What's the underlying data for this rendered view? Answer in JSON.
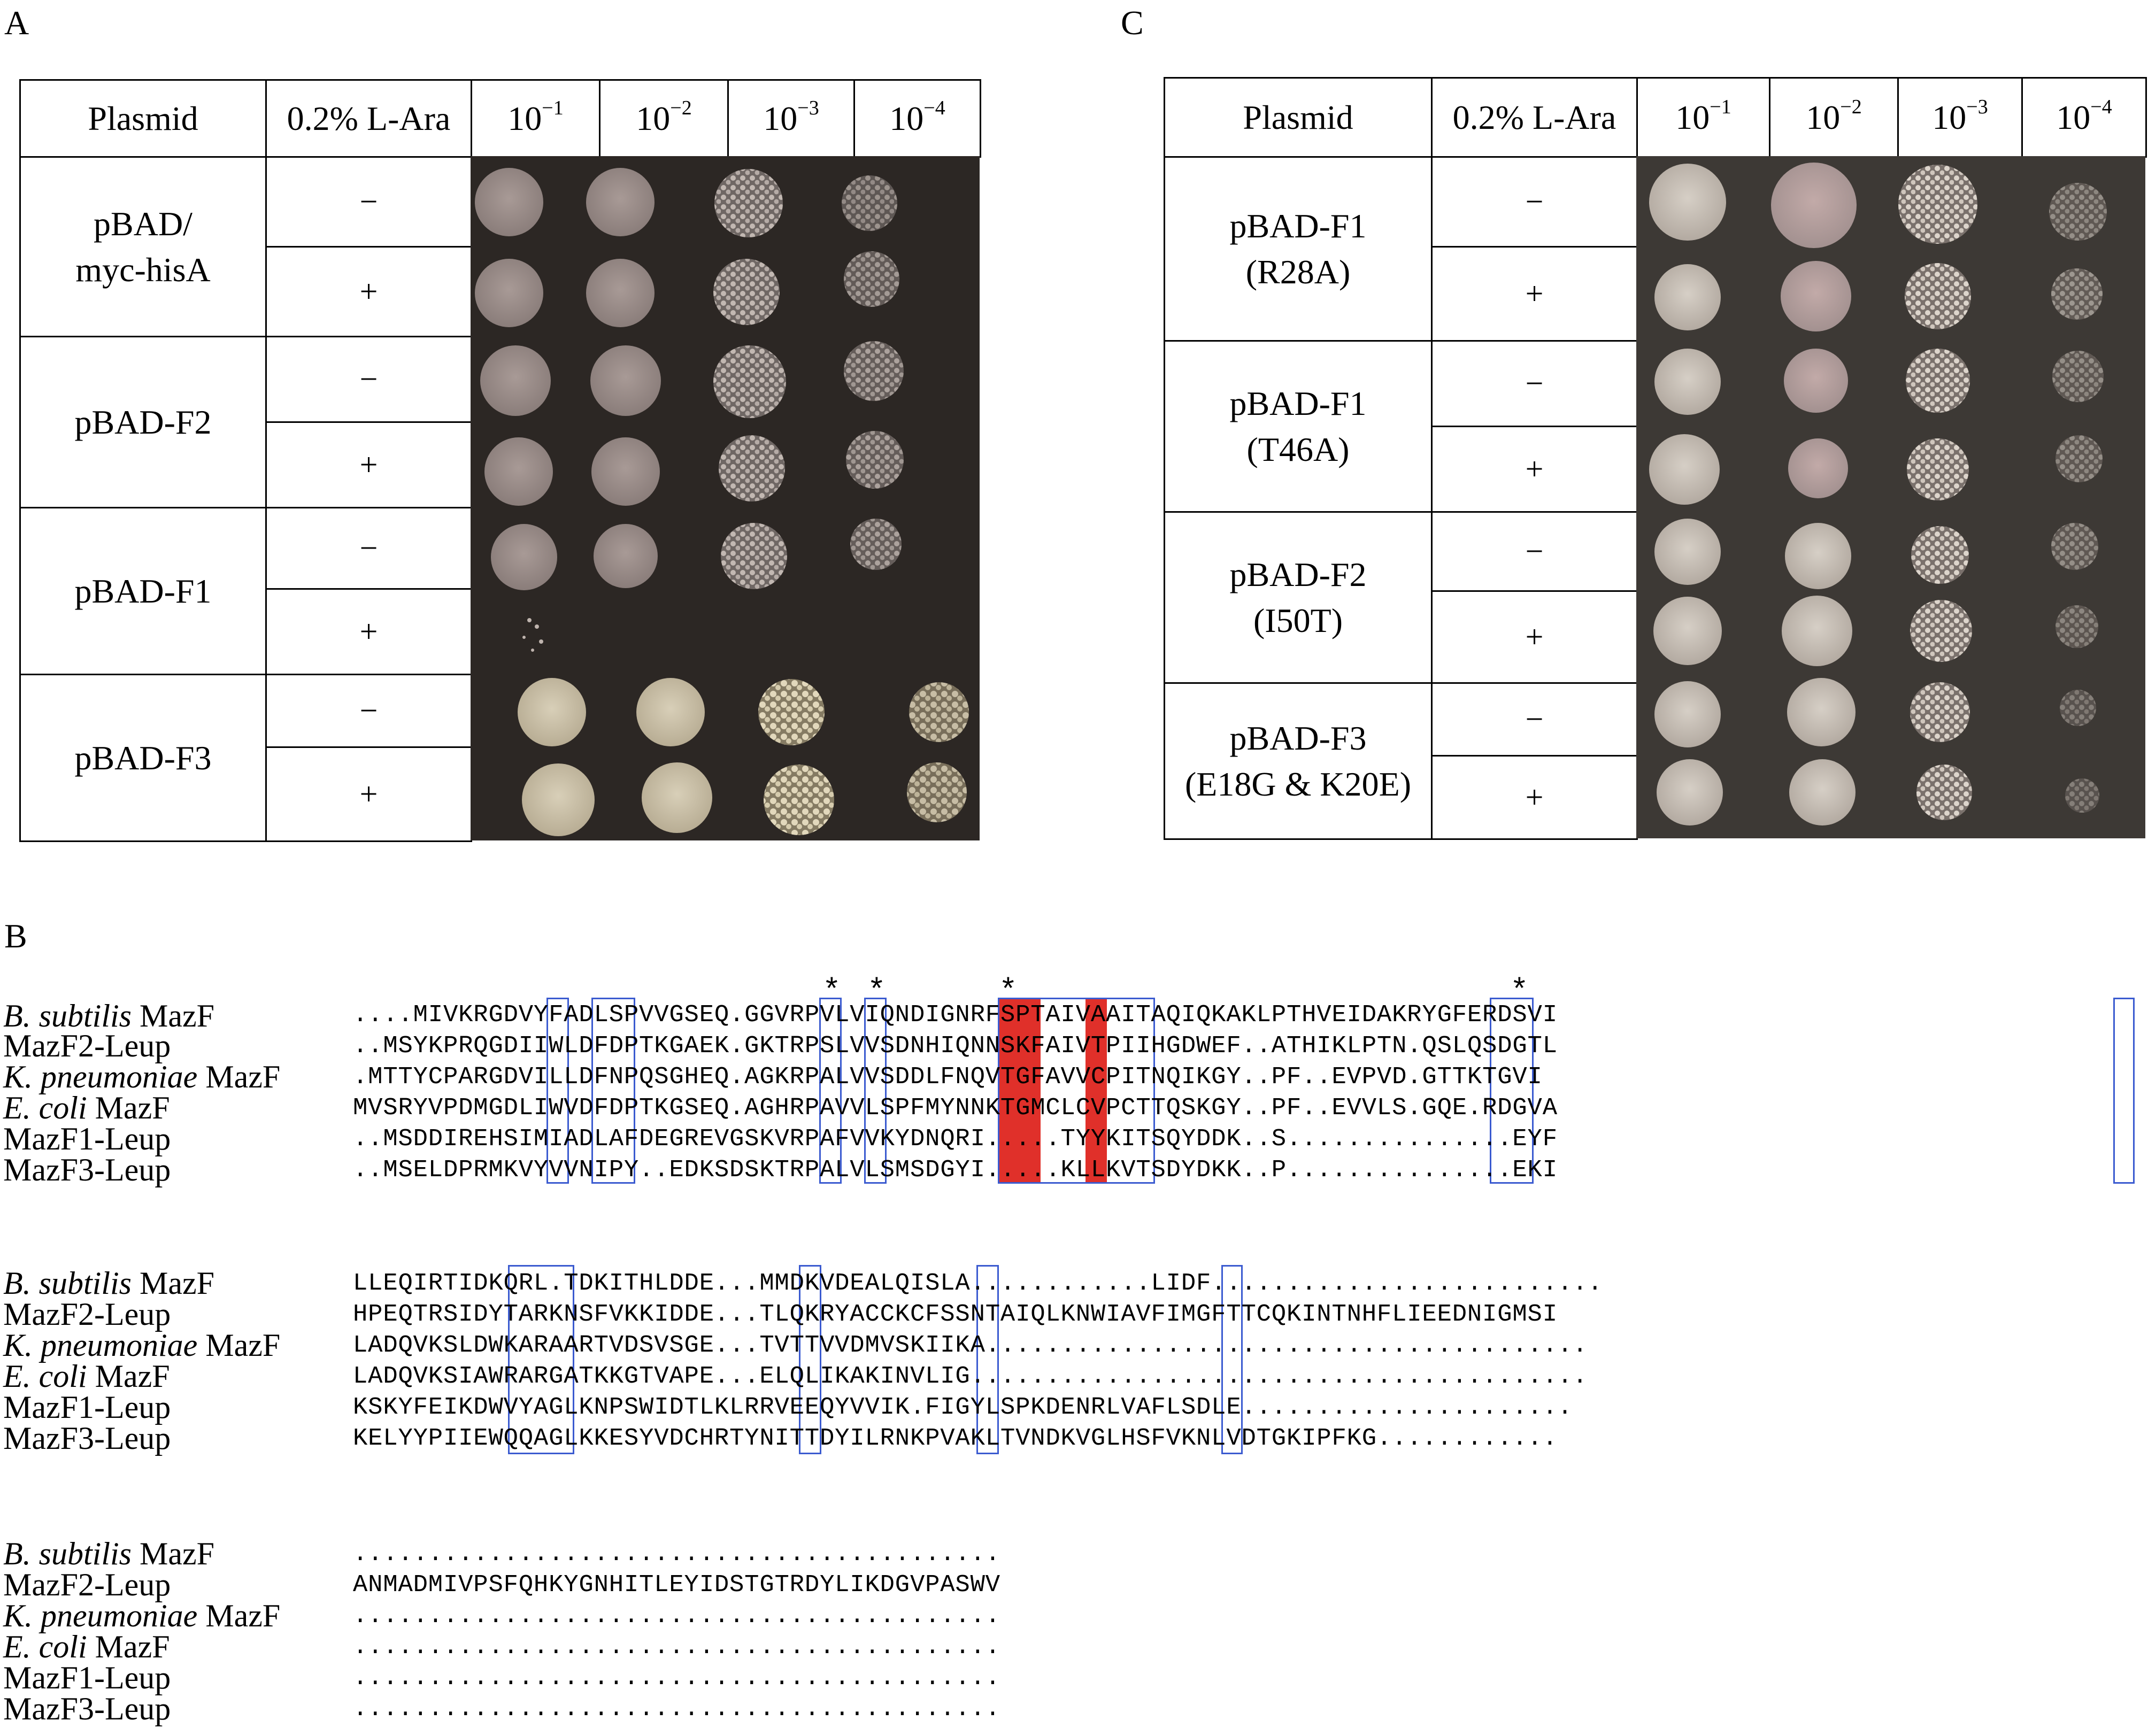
{
  "panel_a": {
    "letter": "A",
    "headers": [
      "Plasmid",
      "0.2% L-Ara",
      "10",
      "10",
      "10",
      "10"
    ],
    "exponents": [
      "−1",
      "−2",
      "−3",
      "−4"
    ],
    "rows": [
      {
        "plasmid_line1": "pBAD/",
        "plasmid_line2": "myc-hisA"
      },
      {
        "plasmid_line1": "pBAD-F2",
        "plasmid_line2": ""
      },
      {
        "plasmid_line1": "pBAD-F1",
        "plasmid_line2": ""
      },
      {
        "plasmid_line1": "pBAD-F3",
        "plasmid_line2": ""
      }
    ],
    "minus": "−",
    "plus": "+"
  },
  "panel_c": {
    "letter": "C",
    "headers": [
      "Plasmid",
      "0.2% L-Ara",
      "10",
      "10",
      "10",
      "10"
    ],
    "exponents": [
      "−1",
      "−2",
      "−3",
      "−4"
    ],
    "rows": [
      {
        "plasmid_line1": "pBAD-F1",
        "plasmid_line2": "(R28A)"
      },
      {
        "plasmid_line1": "pBAD-F1",
        "plasmid_line2": "(T46A)"
      },
      {
        "plasmid_line1": "pBAD-F2",
        "plasmid_line2": "(I50T)"
      },
      {
        "plasmid_line1": "pBAD-F3",
        "plasmid_line2": "(E18G & K20E)"
      }
    ],
    "minus": "−",
    "plus": "+"
  },
  "panel_b": {
    "letter": "B",
    "stars": [
      "*",
      "*",
      "*",
      "*"
    ],
    "organisms": [
      {
        "italic": "B. subtilis",
        "rest": " MazF"
      },
      {
        "italic": "",
        "rest": "MazF2-Leup"
      },
      {
        "italic": "K. pneumoniae",
        "rest": " MazF"
      },
      {
        "italic": "E. coli",
        "rest": " MazF"
      },
      {
        "italic": "",
        "rest": "MazF1-Leup"
      },
      {
        "italic": "",
        "rest": "MazF3-Leup"
      }
    ],
    "block1": [
      "....MIVKRGDVYFADLSPVVGSEQ.GGVRPVLVIQNDIGNRFSPTAIVAAITAQIQKAKLPTHVEIDAKRYGFERDSVI",
      "..MSYKPRQGDIIWLDFDPTKGAEK.GKTRPSLVVSDNHIQNNSKFAIVTPIIHGDWEF..ATHIKLPTN.QSLQSDGTL",
      ".MTTYCPARGDVILLDFNPQSGHEQ.AGKRPALVVSDDLFNQVTGFAVVCPITNQIKGY..PF..EVPVD.GTTKTGVI",
      "MVSRYVPDMGDLIWVDFDPTKGSEQ.AGHRPAVVLSPFMYNNKTGMCLCVPCTTQSKGY..PF..EVVLS.GQE.RDGVA",
      "..MSDDIREHSIMIADLAFDEGREVGSKVRPAFVVKYDNQRI.....TYYKITSQYDDK..S...............EYF",
      "..MSELDPRMKVYVVNIPY..EDKSDSKTRPALVLSMSDGYI.....KLLKVTSDYDKK..P...............EKI"
    ],
    "block2": [
      "LLEQIRTIDKQRL.TDKITHLDDE...MMDKVDEALQISLA............LIDF..........................",
      "HPEQTRSIDYTARKNSFVKKIDDE...TLQKRYACCKCFSSNTAIQLKNWIAVFIMGFTTCQKINTNHFLIEEDNIGMSI",
      "LADQVKSLDWKARAARTVDSVSGE...TVTTVVDMVSKIIKA........................................",
      "LADQVKSIAWRARGATKKGTVAPE...ELQLIKAKINVLIG.........................................",
      "KSKYFEIKDWVYAGLKNPSWIDTLKLRRVEEQYVVIK.FIGYLSPKDENRLVAFLSDLE......................",
      "KELYYPIIEWQQAGLKKESYVDCHRTYNITTDYILRNKPVAKLTVNDKVGLHSFVKNLVDTGKIPFKG............"
    ],
    "block3": [
      "...........................................",
      "ANMADMIVPSFQHKYGNHITLEYIDSTGTRDYLIKDGVPASWV",
      "...........................................",
      "...........................................",
      "...........................................",
      "..........................................."
    ],
    "colors": {
      "box": "#3b5bd0",
      "conserved": "#d4261d",
      "block": "#e0302a"
    }
  }
}
